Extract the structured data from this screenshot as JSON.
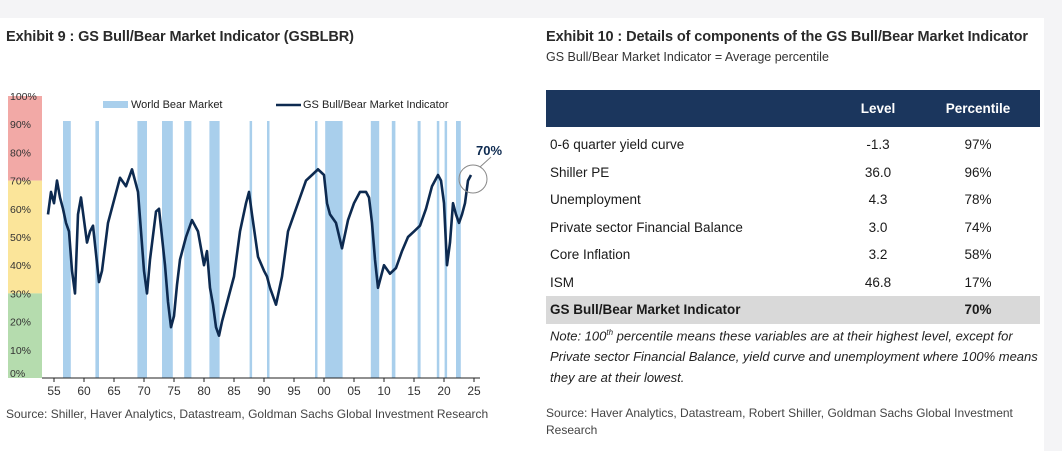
{
  "left": {
    "title": "Exhibit 9 : GS Bull/Bear Market Indicator (GSBLBR)",
    "source": "Source: Shiller, Haver Analytics, Datastream, Goldman Sachs Global Investment Research"
  },
  "right": {
    "title": "Exhibit 10 : Details of components of the GS Bull/Bear Market Indicator",
    "subtitle": "GS Bull/Bear Market Indicator = Average percentile",
    "columns": [
      "",
      "Level",
      "Percentile"
    ],
    "rows": [
      {
        "name": "0-6 quarter yield curve",
        "level": "-1.3",
        "percentile": "97%"
      },
      {
        "name": "Shiller PE",
        "level": "36.0",
        "percentile": "96%"
      },
      {
        "name": "Unemployment",
        "level": "4.3",
        "percentile": "78%"
      },
      {
        "name": "Private sector Financial Balance",
        "level": "3.0",
        "percentile": "74%"
      },
      {
        "name": "Core Inflation",
        "level": "3.2",
        "percentile": "58%"
      },
      {
        "name": "ISM",
        "level": "46.8",
        "percentile": "17%"
      }
    ],
    "total": {
      "name": "GS Bull/Bear Market Indicator",
      "level": "",
      "percentile": "70%"
    },
    "note_prefix": "Note: 100",
    "note_sup": "th",
    "note_rest": " percentile means these variables are at their highest level, except for Private sector Financial Balance, yield curve and unemployment where 100% means they are at their lowest.",
    "source": "Source: Haver Analytics, Datastream, Robert Shiller, Goldman Sachs Global Investment Research"
  },
  "colors": {
    "line": "#0d2a50",
    "bear": "#a9cfec",
    "zone_red": "#f2a9a6",
    "zone_yellow": "#fbe59a",
    "zone_green": "#b5dcae",
    "header": "#1b365d"
  },
  "chart_data": {
    "type": "line",
    "title": "GS Bull/Bear Market Indicator (GSBLBR)",
    "y_ticks": [
      "0%",
      "10%",
      "20%",
      "30%",
      "40%",
      "50%",
      "60%",
      "70%",
      "80%",
      "90%",
      "100%"
    ],
    "x_ticks": [
      "55",
      "60",
      "65",
      "70",
      "75",
      "80",
      "85",
      "90",
      "95",
      "00",
      "05",
      "10",
      "15",
      "20",
      "25"
    ],
    "x_range": [
      1953,
      2026
    ],
    "ylim": [
      0,
      100
    ],
    "legend": [
      "World Bear Market",
      "GS Bull/Bear Market Indicator"
    ],
    "annotation": "70%",
    "zones": [
      {
        "from": 70,
        "to": 100,
        "color": "red"
      },
      {
        "from": 30,
        "to": 70,
        "color": "yellow"
      },
      {
        "from": 0,
        "to": 30,
        "color": "green"
      }
    ],
    "bear_markets": [
      [
        1956.5,
        1957.8
      ],
      [
        1961.9,
        1962.5
      ],
      [
        1968.9,
        1970.5
      ],
      [
        1973.0,
        1974.8
      ],
      [
        1976.7,
        1977.9
      ],
      [
        1980.9,
        1982.6
      ],
      [
        1987.6,
        1987.9
      ],
      [
        1990.5,
        1990.8
      ],
      [
        1998.5,
        1998.8
      ],
      [
        2000.2,
        2003.1
      ],
      [
        2007.8,
        2009.2
      ],
      [
        2011.3,
        2011.9
      ],
      [
        2015.6,
        2016.1
      ],
      [
        2018.8,
        2019.0
      ],
      [
        2020.1,
        2020.3
      ],
      [
        2022.0,
        2022.8
      ]
    ],
    "series": [
      {
        "name": "GS Bull/Bear Market Indicator",
        "x": [
          1954.0,
          1954.5,
          1955.0,
          1955.5,
          1956.0,
          1956.5,
          1957.0,
          1957.5,
          1958.0,
          1958.5,
          1959.0,
          1959.5,
          1960.0,
          1960.5,
          1961.0,
          1961.5,
          1962.0,
          1962.5,
          1963.0,
          1964.0,
          1965.0,
          1966.0,
          1967.0,
          1968.0,
          1968.5,
          1969.0,
          1970.0,
          1970.5,
          1971.0,
          1972.0,
          1972.5,
          1973.0,
          1973.5,
          1974.0,
          1974.5,
          1975.0,
          1975.5,
          1976.0,
          1977.0,
          1978.0,
          1979.0,
          1980.0,
          1980.5,
          1981.0,
          1981.5,
          1982.0,
          1982.5,
          1983.0,
          1984.0,
          1985.0,
          1986.0,
          1987.0,
          1987.5,
          1988.0,
          1989.0,
          1990.0,
          1990.5,
          1991.0,
          1992.0,
          1993.0,
          1994.0,
          1995.0,
          1996.0,
          1997.0,
          1998.0,
          1999.0,
          2000.0,
          2000.5,
          2001.0,
          2002.0,
          2003.0,
          2004.0,
          2005.0,
          2006.0,
          2007.0,
          2007.5,
          2008.0,
          2008.5,
          2009.0,
          2010.0,
          2011.0,
          2012.0,
          2013.0,
          2014.0,
          2015.0,
          2016.0,
          2017.0,
          2018.0,
          2019.0,
          2019.5,
          2020.0,
          2020.5,
          2021.0,
          2021.5,
          2022.0,
          2022.5,
          2023.0,
          2023.5,
          2024.0,
          2024.5
        ],
        "y": [
          58,
          66,
          62,
          70,
          64,
          60,
          55,
          52,
          38,
          30,
          58,
          64,
          56,
          48,
          52,
          54,
          44,
          34,
          38,
          55,
          63,
          71,
          68,
          74,
          70,
          66,
          38,
          30,
          42,
          59,
          60,
          50,
          40,
          27,
          18,
          22,
          33,
          42,
          50,
          56,
          52,
          40,
          45,
          32,
          26,
          18,
          15,
          20,
          28,
          36,
          52,
          62,
          66,
          58,
          43,
          38,
          36,
          32,
          26,
          36,
          52,
          58,
          64,
          70,
          72,
          74,
          72,
          62,
          58,
          55,
          46,
          56,
          62,
          66,
          66,
          64,
          55,
          42,
          32,
          40,
          37,
          39,
          45,
          50,
          52,
          54,
          60,
          68,
          72,
          70,
          62,
          40,
          48,
          62,
          58,
          55,
          58,
          62,
          70,
          72
        ]
      }
    ]
  }
}
